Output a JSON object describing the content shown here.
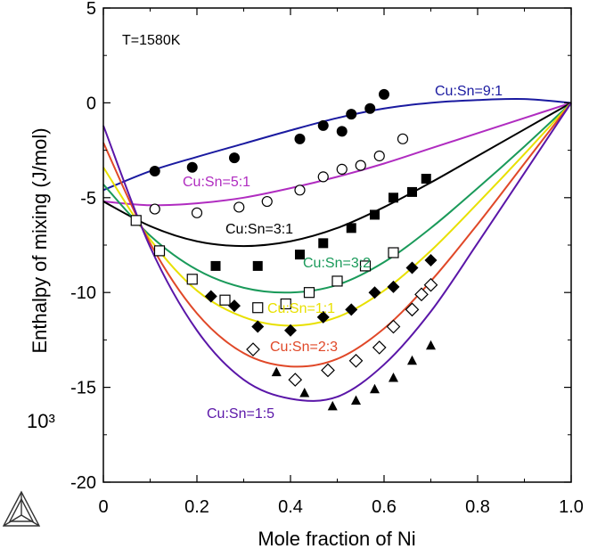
{
  "chart_data": {
    "type": "line",
    "xlabel": "Mole fraction of Ni",
    "ylabel": "Enthalpy of mixing (J/mol)",
    "y_multiplier": "10³",
    "annotation": "T=1580K",
    "xlim": [
      0,
      1.0
    ],
    "ylim": [
      -20,
      5
    ],
    "x_ticks": [
      "0",
      "0.2",
      "0.4",
      "0.6",
      "0.8",
      "1.0"
    ],
    "y_ticks": [
      "5",
      "0",
      "-5",
      "-10",
      "-15",
      "-20"
    ],
    "grid": false,
    "series": [
      {
        "name": "Cu:Sn=9:1",
        "color": "#1a1aa0",
        "x": [
          0,
          0.1,
          0.2,
          0.3,
          0.4,
          0.5,
          0.6,
          0.7,
          0.8,
          0.9,
          1.0
        ],
        "y": [
          -4.6,
          -3.6,
          -2.85,
          -2.15,
          -1.45,
          -0.8,
          -0.3,
          0.0,
          0.15,
          0.2,
          0.0
        ],
        "points": {
          "marker": "filled-circle",
          "x": [
            0.11,
            0.19,
            0.28,
            0.42,
            0.47,
            0.51,
            0.53,
            0.57,
            0.6
          ],
          "y": [
            -3.6,
            -3.4,
            -2.9,
            -1.9,
            -1.2,
            -1.5,
            -0.6,
            -0.3,
            0.45
          ]
        }
      },
      {
        "name": "Cu:Sn=5:1",
        "color": "#b02cc0",
        "x": [
          0,
          0.1,
          0.2,
          0.3,
          0.4,
          0.5,
          0.6,
          0.7,
          0.8,
          0.9,
          1.0
        ],
        "y": [
          -5.2,
          -5.4,
          -5.3,
          -5.0,
          -4.5,
          -3.9,
          -3.2,
          -2.4,
          -1.6,
          -0.8,
          0.0
        ],
        "points": {
          "marker": "open-circle",
          "x": [
            0.11,
            0.2,
            0.29,
            0.35,
            0.42,
            0.47,
            0.51,
            0.55,
            0.59,
            0.64
          ],
          "y": [
            -5.6,
            -5.8,
            -5.5,
            -5.2,
            -4.6,
            -3.9,
            -3.5,
            -3.3,
            -2.8,
            -1.9
          ]
        }
      },
      {
        "name": "Cu:Sn=3:1",
        "color": "#000000",
        "x": [
          0,
          0.1,
          0.2,
          0.3,
          0.4,
          0.5,
          0.6,
          0.7,
          0.8,
          0.9,
          1.0
        ],
        "y": [
          -5.2,
          -6.5,
          -7.3,
          -7.55,
          -7.3,
          -6.6,
          -5.5,
          -4.2,
          -2.8,
          -1.4,
          0.0
        ],
        "points": {
          "marker": "filled-square",
          "x": [
            0.24,
            0.33,
            0.42,
            0.47,
            0.53,
            0.58,
            0.62,
            0.66,
            0.69
          ],
          "y": [
            -8.6,
            -8.6,
            -8.0,
            -7.4,
            -6.6,
            -5.9,
            -5.0,
            -4.7,
            -4.0
          ]
        }
      },
      {
        "name": "Cu:Sn=3:2",
        "color": "#1a9a5a",
        "x": [
          0,
          0.1,
          0.2,
          0.3,
          0.4,
          0.5,
          0.6,
          0.7,
          0.8,
          0.9,
          1.0
        ],
        "y": [
          -4.3,
          -7.0,
          -8.8,
          -9.75,
          -10.0,
          -9.6,
          -8.4,
          -6.6,
          -4.5,
          -2.3,
          0.0
        ],
        "points": {
          "marker": "open-square",
          "x": [
            0.07,
            0.12,
            0.19,
            0.26,
            0.33,
            0.39,
            0.44,
            0.5,
            0.56,
            0.62
          ],
          "y": [
            -6.2,
            -7.8,
            -9.3,
            -10.4,
            -10.8,
            -10.6,
            -10.0,
            -9.4,
            -8.6,
            -7.9
          ]
        }
      },
      {
        "name": "Cu:Sn=1:1",
        "color": "#e8e000",
        "x": [
          0,
          0.1,
          0.2,
          0.3,
          0.4,
          0.5,
          0.6,
          0.7,
          0.8,
          0.9,
          1.0
        ],
        "y": [
          -3.4,
          -7.2,
          -9.9,
          -11.3,
          -11.75,
          -11.3,
          -9.9,
          -7.8,
          -5.3,
          -2.7,
          0.0
        ],
        "points": {
          "marker": "filled-diamond",
          "x": [
            0.23,
            0.28,
            0.33,
            0.4,
            0.47,
            0.53,
            0.58,
            0.62,
            0.66,
            0.7
          ],
          "y": [
            -10.2,
            -10.7,
            -11.8,
            -12.0,
            -11.3,
            -10.9,
            -10.0,
            -9.7,
            -8.7,
            -8.3
          ]
        }
      },
      {
        "name": "Cu:Sn=2:3",
        "color": "#e04828",
        "x": [
          0,
          0.1,
          0.2,
          0.3,
          0.4,
          0.5,
          0.6,
          0.7,
          0.8,
          0.9,
          1.0
        ],
        "y": [
          -2.1,
          -7.4,
          -11.1,
          -13.2,
          -13.9,
          -13.5,
          -11.9,
          -9.4,
          -6.4,
          -3.2,
          0.0
        ],
        "points": {
          "marker": "open-diamond",
          "x": [
            0.32,
            0.41,
            0.48,
            0.54,
            0.59,
            0.62,
            0.66,
            0.68,
            0.7
          ],
          "y": [
            -13.0,
            -14.6,
            -14.1,
            -13.6,
            -12.9,
            -11.8,
            -10.9,
            -10.1,
            -9.6
          ]
        }
      },
      {
        "name": "Cu:Sn=1:5",
        "color": "#5a16a8",
        "x": [
          0,
          0.1,
          0.2,
          0.3,
          0.4,
          0.5,
          0.6,
          0.7,
          0.8,
          0.9,
          1.0
        ],
        "y": [
          -1.2,
          -7.6,
          -12.0,
          -14.6,
          -15.6,
          -15.5,
          -13.8,
          -11.0,
          -7.4,
          -3.7,
          0.0
        ],
        "points": {
          "marker": "filled-triangle",
          "x": [
            0.37,
            0.43,
            0.49,
            0.54,
            0.58,
            0.62,
            0.66,
            0.7
          ],
          "y": [
            -14.2,
            -15.3,
            -16.0,
            -15.7,
            -15.1,
            -14.5,
            -13.6,
            -12.8
          ]
        }
      }
    ]
  }
}
